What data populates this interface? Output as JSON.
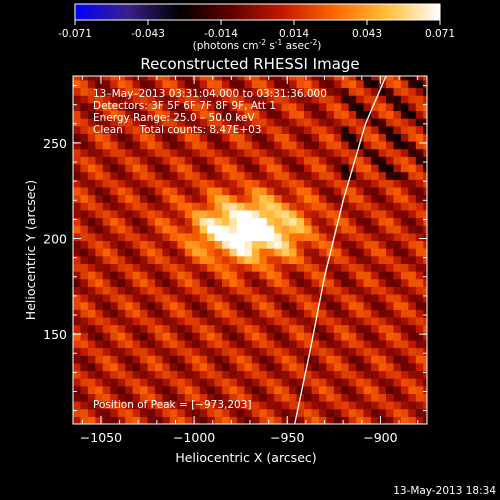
{
  "colorbar": {
    "ticks": [
      "-0.071",
      "-0.043",
      "-0.014",
      "0.014",
      "0.043",
      "0.071"
    ],
    "units_prefix": "(photons cm",
    "units_exp1": "-2",
    "units_mid": " s",
    "units_exp2": "-1",
    "units_mid2": " asec",
    "units_exp3": "-2",
    "units_suffix": ")",
    "colormap": [
      "#0000ff",
      "#3a1f8a",
      "#000000",
      "#600000",
      "#c41a00",
      "#ff6a00",
      "#ffc040",
      "#ffffff"
    ]
  },
  "chart_data": {
    "type": "heatmap",
    "title": "Reconstructed RHESSI Image",
    "xlabel": "Heliocentric X (arcsec)",
    "ylabel": "Heliocentric Y (arcsec)",
    "xlim": [
      -1065,
      -875
    ],
    "ylim": [
      103,
      285
    ],
    "xticks": [
      {
        "value": -1050,
        "label": "−1050"
      },
      {
        "value": -1000,
        "label": "−1000"
      },
      {
        "value": -950,
        "label": "−950"
      },
      {
        "value": -900,
        "label": "−900"
      }
    ],
    "yticks": [
      {
        "value": 150,
        "label": "150"
      },
      {
        "value": 200,
        "label": "200"
      },
      {
        "value": 250,
        "label": "250"
      }
    ],
    "info_lines": [
      "13–May–2013 03:31:04.000 to 03:31:36.000",
      "Detectors: 3F 5F 6F 7F 8F 9F, Att 1",
      "Energy Range: 25.0 – 50.0 keV",
      "Clean     Total counts: 8.47E+03"
    ],
    "peak_label": "Position of Peak = [−973,203]",
    "peak": [
      -973,
      203
    ],
    "value_range": [
      -0.071,
      0.071
    ],
    "limb": [
      [
        -946,
        103
      ],
      [
        -938,
        140
      ],
      [
        -930,
        180
      ],
      [
        -920,
        220
      ],
      [
        -908,
        260
      ],
      [
        -897,
        285
      ]
    ]
  },
  "footer": {
    "timestamp": "13-May-2013 18:34"
  }
}
